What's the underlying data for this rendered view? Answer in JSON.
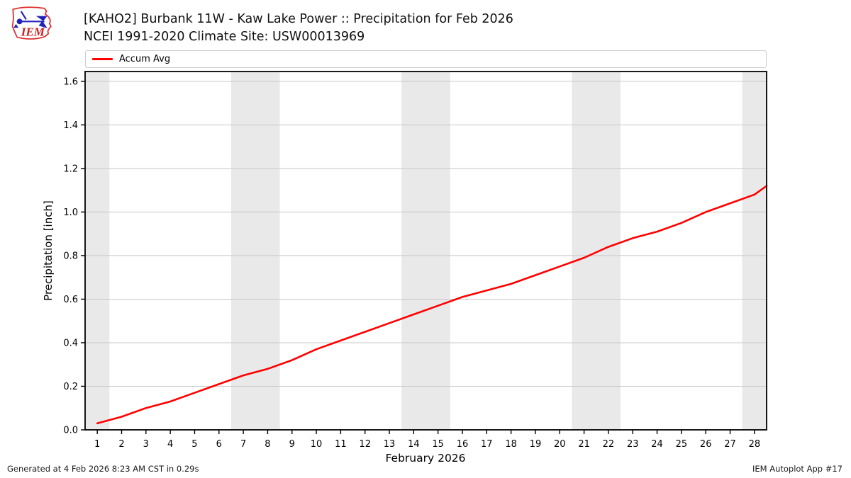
{
  "header": {
    "title_line1": "[KAHO2] Burbank 11W - Kaw Lake Power :: Precipitation for Feb 2026",
    "title_line2": "NCEI 1991-2020 Climate Site: USW00013969",
    "logo_text": "IEM"
  },
  "legend": {
    "label": "Accum Avg",
    "color": "#ff0000"
  },
  "chart_data": {
    "type": "line",
    "title": "[KAHO2] Burbank 11W - Kaw Lake Power :: Precipitation for Feb 2026",
    "subtitle": "NCEI 1991-2020 Climate Site: USW00013969",
    "xlabel": "February 2026",
    "ylabel": "Precipitation [inch]",
    "xlim": [
      0.5,
      28.5
    ],
    "ylim": [
      0,
      1.645
    ],
    "xticks": [
      1,
      2,
      3,
      4,
      5,
      6,
      7,
      8,
      9,
      10,
      11,
      12,
      13,
      14,
      15,
      16,
      17,
      18,
      19,
      20,
      21,
      22,
      23,
      24,
      25,
      26,
      27,
      28
    ],
    "yticks": [
      0.0,
      0.2,
      0.4,
      0.6,
      0.8,
      1.0,
      1.2,
      1.4,
      1.6
    ],
    "grid": "horizontal",
    "legend_position": "top-left-bar",
    "weekend_bands": [
      [
        0.5,
        1.5
      ],
      [
        6.5,
        8.5
      ],
      [
        13.5,
        15.5
      ],
      [
        20.5,
        22.5
      ],
      [
        27.5,
        28.5
      ]
    ],
    "series": [
      {
        "name": "Accum Avg",
        "color": "#ff0000",
        "x": [
          1,
          2,
          3,
          4,
          5,
          6,
          7,
          8,
          9,
          10,
          11,
          12,
          13,
          14,
          15,
          16,
          17,
          18,
          19,
          20,
          21,
          22,
          23,
          24,
          25,
          26,
          27,
          28,
          28.5
        ],
        "values": [
          0.03,
          0.06,
          0.1,
          0.13,
          0.17,
          0.21,
          0.25,
          0.28,
          0.32,
          0.37,
          0.41,
          0.45,
          0.49,
          0.53,
          0.57,
          0.61,
          0.64,
          0.67,
          0.71,
          0.75,
          0.79,
          0.84,
          0.88,
          0.91,
          0.95,
          1.0,
          1.04,
          1.08,
          1.12
        ]
      }
    ]
  },
  "footer": {
    "left": "Generated at 4 Feb 2026 8:23 AM CST in 0.29s",
    "right": "IEM Autoplot App #17"
  },
  "colors": {
    "band": "#e9e9e9",
    "grid": "#c8c8c8",
    "spine": "#000000",
    "accent": "#ff0000",
    "logo_red": "#e03030",
    "logo_blue": "#2222bb"
  }
}
